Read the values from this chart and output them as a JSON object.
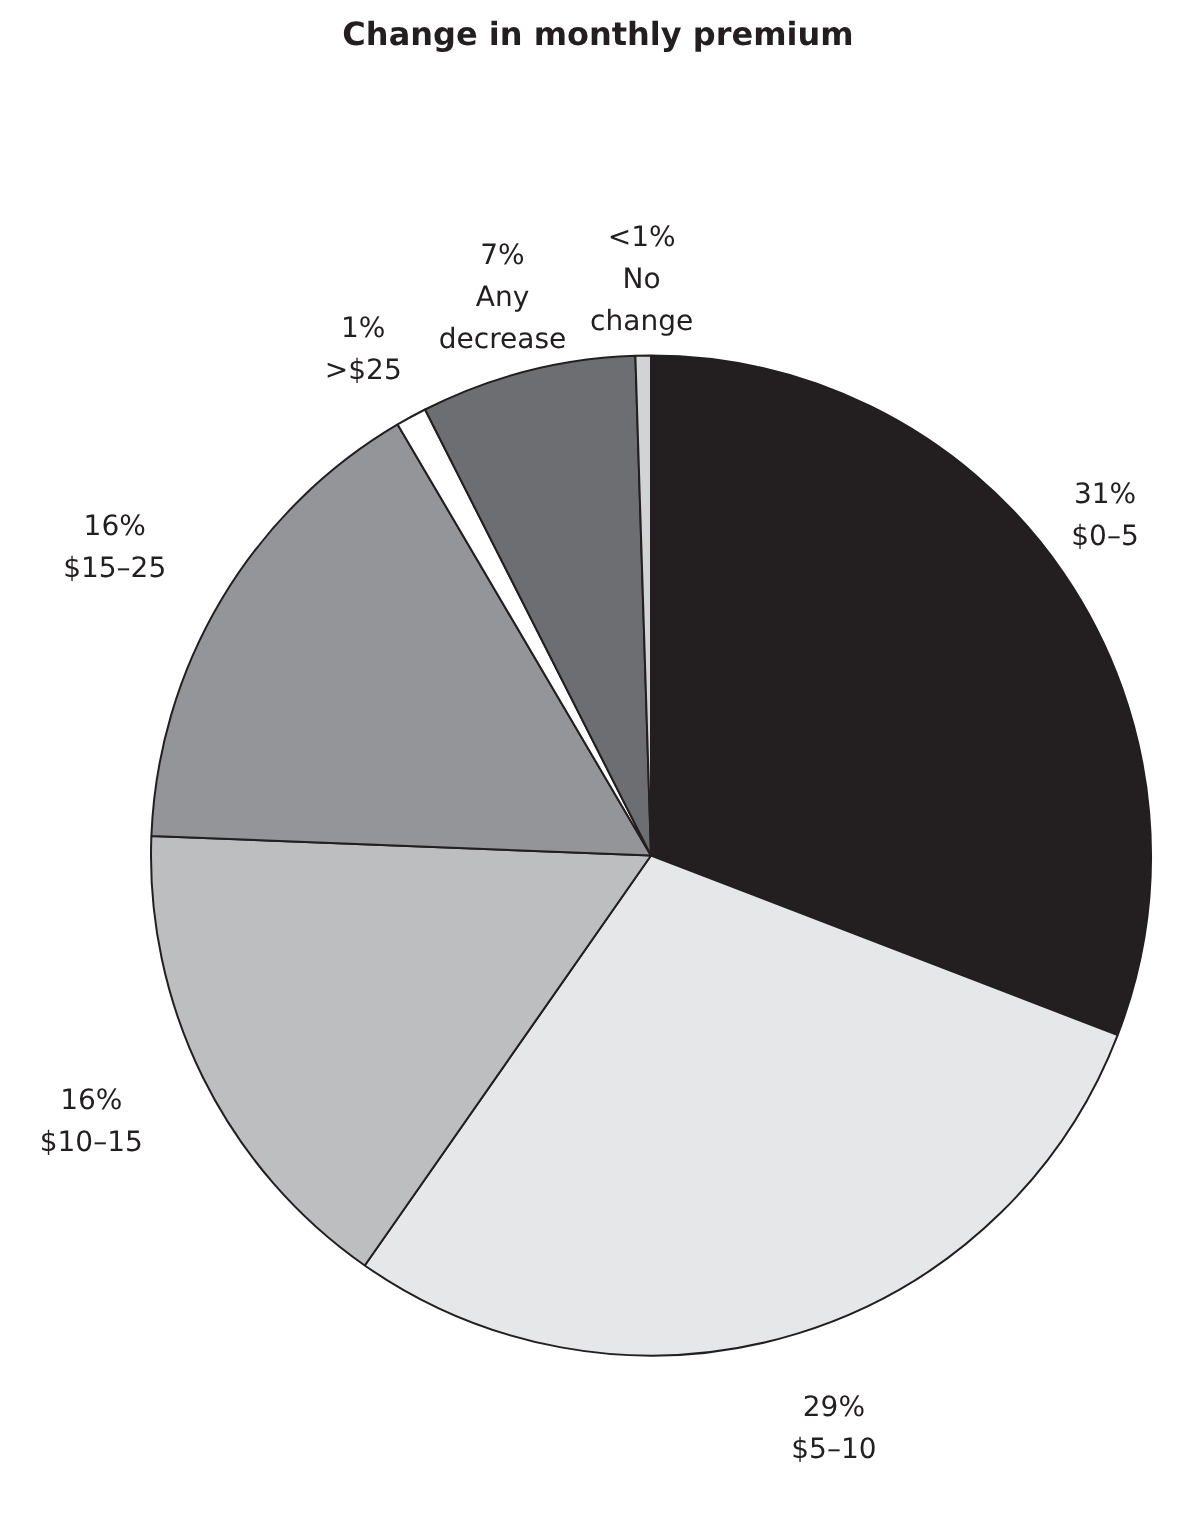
{
  "chart_data": {
    "type": "pie",
    "title": "Change in monthly premium",
    "categories": [
      "$0–5",
      "$5–10",
      "$10–15",
      "$15–25",
      ">$25",
      "Any\ndecrease",
      "No\nchange"
    ],
    "values": [
      31,
      29,
      16,
      16,
      1,
      7,
      0.5
    ],
    "value_labels": [
      "31%",
      "29%",
      "16%",
      "16%",
      "1%",
      "7%",
      "<1%"
    ],
    "colors": [
      "#231f20",
      "#e6e7e8",
      "#bcbec0",
      "#939598",
      "#ffffff",
      "#6d6e71",
      "#d1d3d4"
    ]
  }
}
